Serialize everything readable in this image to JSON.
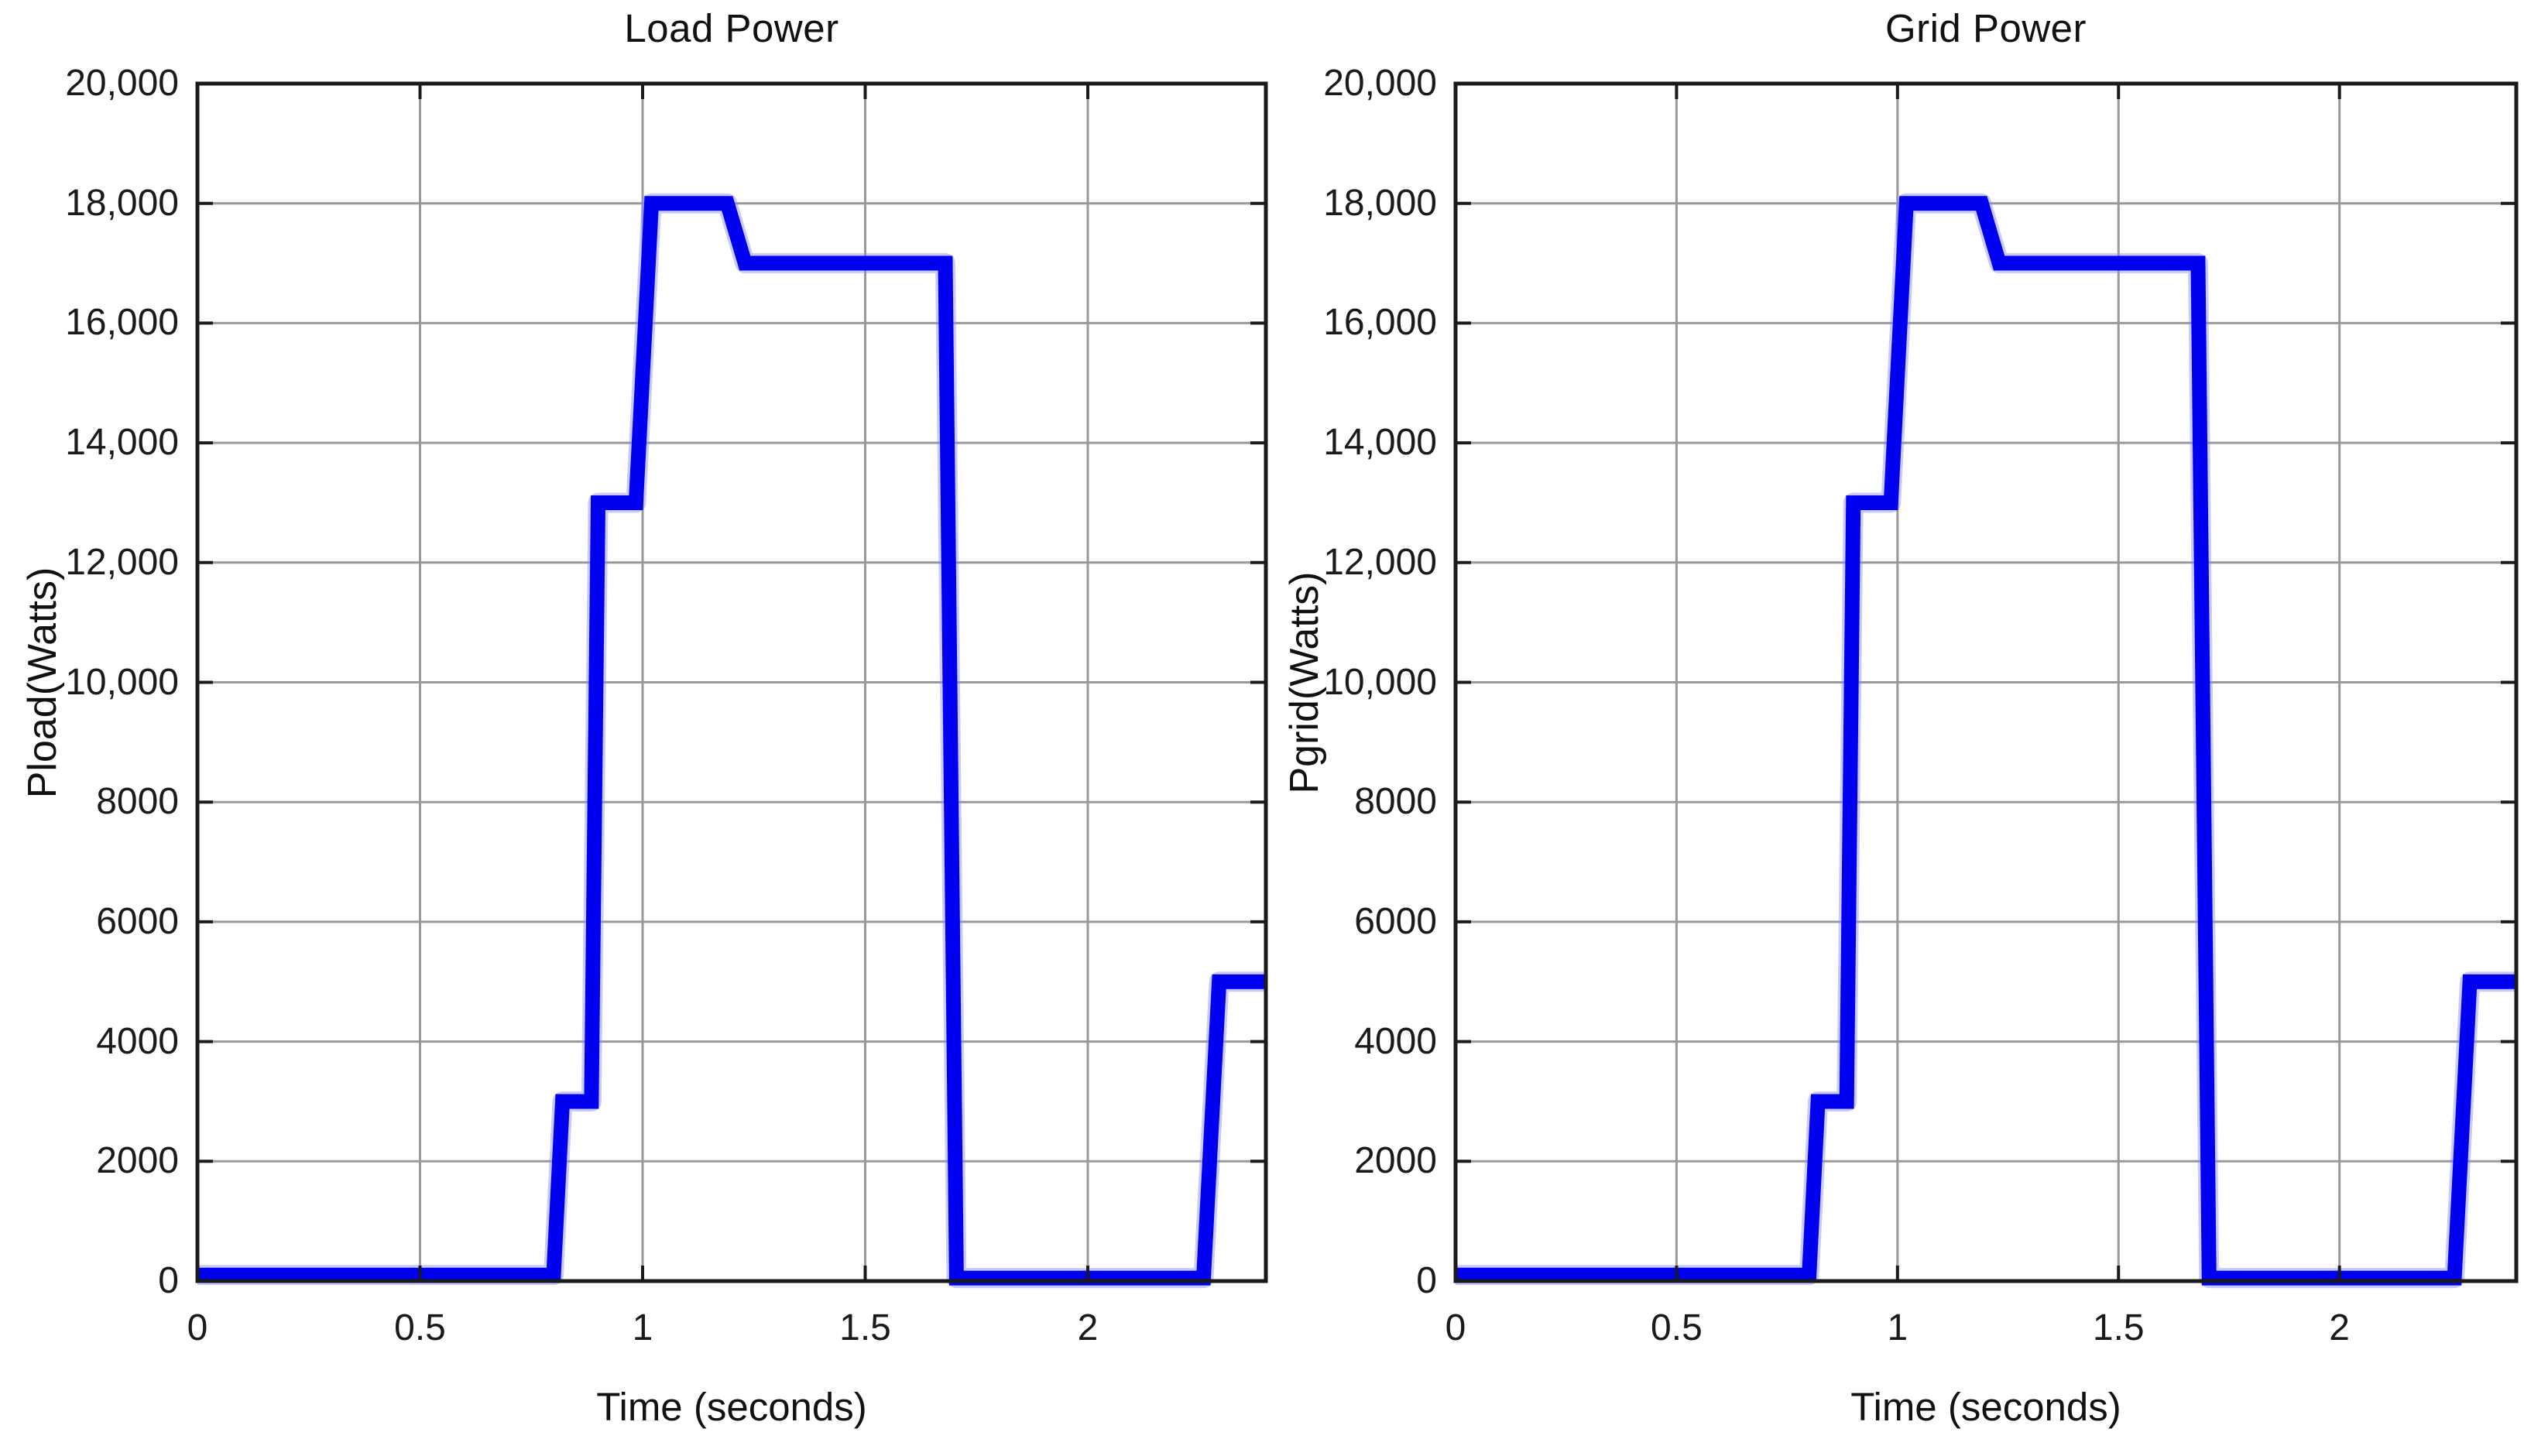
{
  "palette": {
    "background": "#ffffff",
    "line": "#0000f0",
    "line_halo": "#8a8aff",
    "grid": "#999999",
    "axis": "#1a1a1a",
    "text": "#1a1a1a"
  },
  "chart_data": [
    {
      "type": "line",
      "title": "Load Power",
      "xlabel": "Time (seconds)",
      "ylabel": "Pload(Watts)",
      "xlim": [
        0,
        2.4
      ],
      "ylim": [
        0,
        20000
      ],
      "grid": true,
      "legend": false,
      "line_color": "#0000f0",
      "x_ticks": [
        0,
        0.5,
        1,
        1.5,
        2
      ],
      "x_tick_labels": [
        "0",
        "0.5",
        "1",
        "1.5",
        "2"
      ],
      "y_ticks": [
        0,
        2000,
        4000,
        6000,
        8000,
        10000,
        12000,
        14000,
        16000,
        18000,
        20000
      ],
      "y_tick_labels": [
        "0",
        "2000",
        "4000",
        "6000",
        "8000",
        "10,000",
        "12,000",
        "14,000",
        "16,000",
        "18,000",
        "20,000"
      ],
      "series": [
        {
          "name": "Pload",
          "x": [
            0,
            0.8,
            0.82,
            0.885,
            0.9,
            0.985,
            1.02,
            1.19,
            1.23,
            1.68,
            1.705,
            2.26,
            2.295,
            2.4
          ],
          "y": [
            100,
            100,
            3000,
            3000,
            13000,
            13000,
            18000,
            18000,
            17000,
            17000,
            50,
            50,
            5000,
            5000
          ]
        }
      ]
    },
    {
      "type": "line",
      "title": "Grid Power",
      "xlabel": "Time (seconds)",
      "ylabel": "Pgrid(Watts)",
      "xlim": [
        0,
        2.4
      ],
      "ylim": [
        0,
        20000
      ],
      "grid": true,
      "legend": false,
      "line_color": "#0000f0",
      "x_ticks": [
        0,
        0.5,
        1,
        1.5,
        2
      ],
      "x_tick_labels": [
        "0",
        "0.5",
        "1",
        "1.5",
        "2"
      ],
      "y_ticks": [
        0,
        2000,
        4000,
        6000,
        8000,
        10000,
        12000,
        14000,
        16000,
        18000,
        20000
      ],
      "y_tick_labels": [
        "0",
        "2000",
        "4000",
        "6000",
        "8000",
        "10,000",
        "12,000",
        "14,000",
        "16,000",
        "18,000",
        "20,000"
      ],
      "series": [
        {
          "name": "Pgrid",
          "x": [
            0,
            0.8,
            0.82,
            0.885,
            0.9,
            0.985,
            1.02,
            1.19,
            1.23,
            1.68,
            1.705,
            2.26,
            2.295,
            2.4
          ],
          "y": [
            100,
            100,
            3000,
            3000,
            13000,
            13000,
            18000,
            18000,
            17000,
            17000,
            50,
            50,
            5000,
            5000
          ]
        }
      ]
    }
  ]
}
